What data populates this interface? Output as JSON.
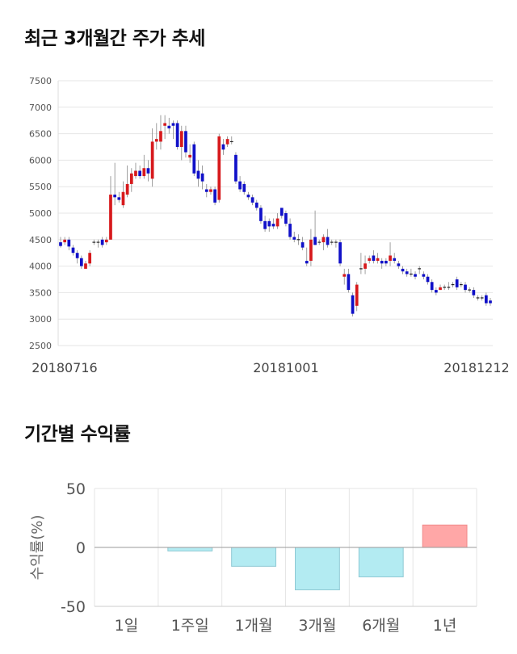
{
  "titles": {
    "price_trend": "최근 3개월간 주가 추세",
    "returns": "기간별 수익률"
  },
  "colors": {
    "up": "#d7191c",
    "down": "#1010c8",
    "positive_bar": "#ffa7a7",
    "negative_bar": "#b3ebf2",
    "grid": "#e6e6e6"
  },
  "chart_data": [
    {
      "type": "candlestick",
      "title": "최근 3개월간 주가 추세",
      "ylim": [
        2500,
        7500
      ],
      "yticks": [
        2500,
        3000,
        3500,
        4000,
        4500,
        5000,
        5500,
        6000,
        6500,
        7000,
        7500
      ],
      "xtick_labels": [
        {
          "index": 0,
          "label": "20180716"
        },
        {
          "index": 54,
          "label": "20181001"
        },
        {
          "index": 103,
          "label": "20181212"
        }
      ],
      "grid": true,
      "candles": [
        [
          4450,
          4380,
          4550,
          4350
        ],
        [
          4450,
          4500,
          4550,
          4400
        ],
        [
          4500,
          4370,
          4550,
          4300
        ],
        [
          4350,
          4250,
          4400,
          4200
        ],
        [
          4250,
          4150,
          4300,
          4050
        ],
        [
          4150,
          4000,
          4200,
          3950
        ],
        [
          3950,
          4050,
          4100,
          3950
        ],
        [
          4050,
          4250,
          4300,
          4000
        ],
        [
          4450,
          4450,
          4500,
          4400
        ],
        [
          4450,
          4450,
          4500,
          4350
        ],
        [
          4500,
          4400,
          4550,
          4350
        ],
        [
          4450,
          4500,
          4550,
          4400
        ],
        [
          4500,
          5350,
          5700,
          4500
        ],
        [
          5350,
          5300,
          5950,
          5150
        ],
        [
          5300,
          5250,
          5400,
          5200
        ],
        [
          5150,
          5400,
          5600,
          5100
        ],
        [
          5350,
          5550,
          5900,
          5300
        ],
        [
          5550,
          5750,
          5850,
          5400
        ],
        [
          5700,
          5800,
          5950,
          5650
        ],
        [
          5800,
          5700,
          5900,
          5650
        ],
        [
          5700,
          5850,
          6100,
          5650
        ],
        [
          5850,
          5750,
          6000,
          5600
        ],
        [
          5650,
          6350,
          6600,
          5500
        ],
        [
          6350,
          6400,
          6700,
          6200
        ],
        [
          6350,
          6550,
          6850,
          6200
        ],
        [
          6650,
          6700,
          6850,
          6400
        ],
        [
          6650,
          6600,
          6800,
          6500
        ],
        [
          6700,
          6650,
          6750,
          6400
        ],
        [
          6700,
          6250,
          6750,
          6200
        ],
        [
          6250,
          6550,
          6650,
          6000
        ],
        [
          6550,
          6150,
          6650,
          6050
        ],
        [
          6050,
          6100,
          6300,
          5950
        ],
        [
          6300,
          5750,
          6350,
          5700
        ],
        [
          5800,
          5650,
          6000,
          5500
        ],
        [
          5750,
          5600,
          5900,
          5450
        ],
        [
          5450,
          5400,
          5550,
          5300
        ],
        [
          5400,
          5450,
          5500,
          5350
        ],
        [
          5450,
          5200,
          5500,
          5150
        ],
        [
          5250,
          6450,
          6500,
          5200
        ],
        [
          6300,
          6200,
          6400,
          6100
        ],
        [
          6300,
          6400,
          6450,
          6250
        ],
        [
          6350,
          6350,
          6450,
          6300
        ],
        [
          6100,
          5600,
          6150,
          5550
        ],
        [
          5600,
          5450,
          5700,
          5400
        ],
        [
          5550,
          5400,
          5600,
          5350
        ],
        [
          5350,
          5300,
          5400,
          5250
        ],
        [
          5300,
          5200,
          5350,
          5150
        ],
        [
          5200,
          5100,
          5250,
          5050
        ],
        [
          5100,
          4850,
          5150,
          4800
        ],
        [
          4850,
          4700,
          4950,
          4650
        ],
        [
          4850,
          4750,
          4900,
          4650
        ],
        [
          4800,
          4750,
          4900,
          4700
        ],
        [
          4750,
          4900,
          5000,
          4700
        ],
        [
          5100,
          4950,
          5100,
          4900
        ],
        [
          5000,
          4800,
          5050,
          4750
        ],
        [
          4800,
          4550,
          4900,
          4500
        ],
        [
          4550,
          4500,
          4650,
          4450
        ],
        [
          4500,
          4500,
          4600,
          4400
        ],
        [
          4450,
          4350,
          4550,
          4300
        ],
        [
          4100,
          4050,
          4350,
          4000
        ],
        [
          4100,
          4500,
          4700,
          4000
        ],
        [
          4550,
          4400,
          5050,
          4400
        ],
        [
          4450,
          4450,
          4500,
          4400
        ],
        [
          4450,
          4550,
          4600,
          4300
        ],
        [
          4550,
          4400,
          4700,
          4350
        ],
        [
          4450,
          4450,
          4500,
          4400
        ],
        [
          4450,
          4450,
          4500,
          4350
        ],
        [
          4450,
          4050,
          4500,
          4000
        ],
        [
          3800,
          3850,
          3950,
          3650
        ],
        [
          3850,
          3550,
          3950,
          3500
        ],
        [
          3450,
          3100,
          3500,
          3050
        ],
        [
          3250,
          3650,
          3700,
          3150
        ],
        [
          3950,
          3950,
          4250,
          3850
        ],
        [
          3950,
          4050,
          4200,
          3850
        ],
        [
          4100,
          4150,
          4200,
          4050
        ],
        [
          4200,
          4100,
          4300,
          4050
        ],
        [
          4100,
          4150,
          4250,
          4050
        ],
        [
          4100,
          4050,
          4150,
          3950
        ],
        [
          4100,
          4050,
          4150,
          4000
        ],
        [
          4100,
          4200,
          4450,
          4000
        ],
        [
          4150,
          4100,
          4250,
          4050
        ],
        [
          4050,
          4000,
          4100,
          3950
        ],
        [
          3950,
          3900,
          4000,
          3850
        ],
        [
          3900,
          3850,
          3950,
          3800
        ],
        [
          3850,
          3850,
          3950,
          3800
        ],
        [
          3850,
          3800,
          3900,
          3750
        ],
        [
          3950,
          3950,
          4000,
          3850
        ],
        [
          3850,
          3800,
          3900,
          3750
        ],
        [
          3800,
          3700,
          3850,
          3650
        ],
        [
          3700,
          3550,
          3750,
          3500
        ],
        [
          3550,
          3500,
          3600,
          3450
        ],
        [
          3550,
          3600,
          3650,
          3550
        ],
        [
          3600,
          3600,
          3650,
          3550
        ],
        [
          3600,
          3600,
          3700,
          3550
        ],
        [
          3650,
          3650,
          3700,
          3600
        ],
        [
          3750,
          3600,
          3800,
          3550
        ],
        [
          3650,
          3650,
          3700,
          3600
        ],
        [
          3650,
          3550,
          3700,
          3500
        ],
        [
          3550,
          3550,
          3600,
          3500
        ],
        [
          3550,
          3450,
          3600,
          3400
        ],
        [
          3400,
          3400,
          3450,
          3350
        ],
        [
          3400,
          3400,
          3450,
          3350
        ],
        [
          3450,
          3300,
          3500,
          3250
        ],
        [
          3350,
          3300,
          3400,
          3250
        ]
      ]
    },
    {
      "type": "bar",
      "title": "기간별 수익률",
      "ylabel": "수익률(%)",
      "categories": [
        "1일",
        "1주일",
        "1개월",
        "3개월",
        "6개월",
        "1년"
      ],
      "values": [
        0,
        -3,
        -16,
        -36,
        -25,
        19
      ],
      "ylim": [
        -50,
        50
      ],
      "yticks": [
        -50,
        0,
        50
      ],
      "grid": true
    }
  ]
}
